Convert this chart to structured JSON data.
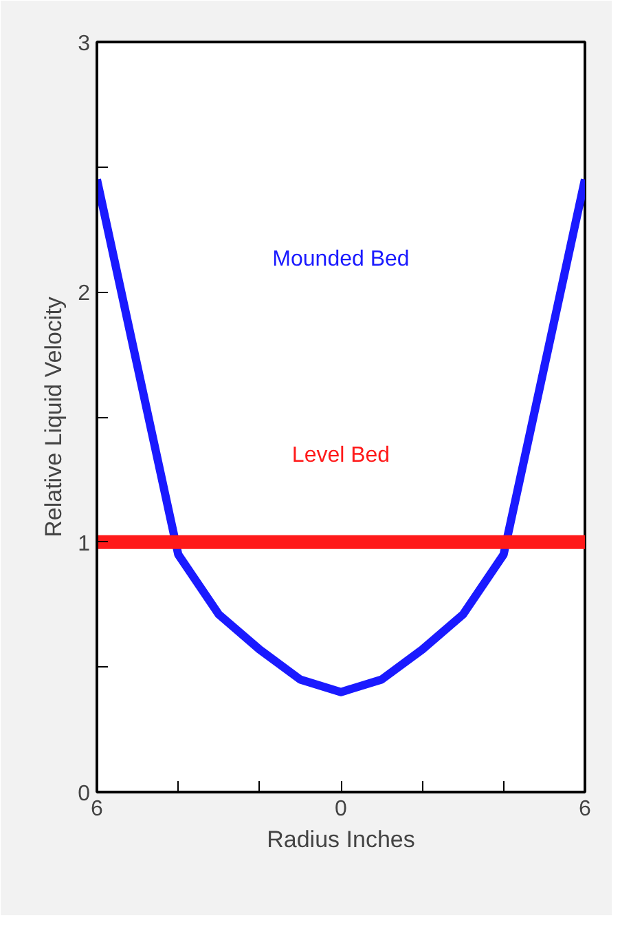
{
  "chart_data": {
    "type": "line",
    "xlabel": "Radius Inches",
    "ylabel": "Relative Liquid Velocity",
    "x": [
      -6,
      -5,
      -4,
      -3,
      -2,
      -1,
      0,
      1,
      2,
      3,
      4,
      5,
      6
    ],
    "series": [
      {
        "name": "Mounded Bed",
        "color": "#1a1aff",
        "values": [
          2.45,
          1.7,
          0.95,
          0.71,
          0.57,
          0.45,
          0.4,
          0.45,
          0.57,
          0.71,
          0.95,
          1.7,
          2.45
        ]
      },
      {
        "name": "Level Bed",
        "color": "#ff1a1a",
        "values": [
          1,
          1,
          1,
          1,
          1,
          1,
          1,
          1,
          1,
          1,
          1,
          1,
          1
        ]
      }
    ],
    "xlim": [
      -6,
      6
    ],
    "ylim": [
      0,
      3
    ],
    "xticks": [
      {
        "value": -6,
        "label": "6"
      },
      {
        "value": -4,
        "label": null
      },
      {
        "value": -2,
        "label": null
      },
      0,
      {
        "value": 2,
        "label": null
      },
      {
        "value": 4,
        "label": null
      },
      {
        "value": 6,
        "label": "6"
      }
    ],
    "yticks": [
      0,
      {
        "value": 0.5,
        "label": null
      },
      1,
      {
        "value": 1.5,
        "label": null
      },
      2,
      {
        "value": 2.5,
        "label": null
      },
      3
    ],
    "grid": false,
    "marker": "none",
    "line_style": "solid"
  }
}
